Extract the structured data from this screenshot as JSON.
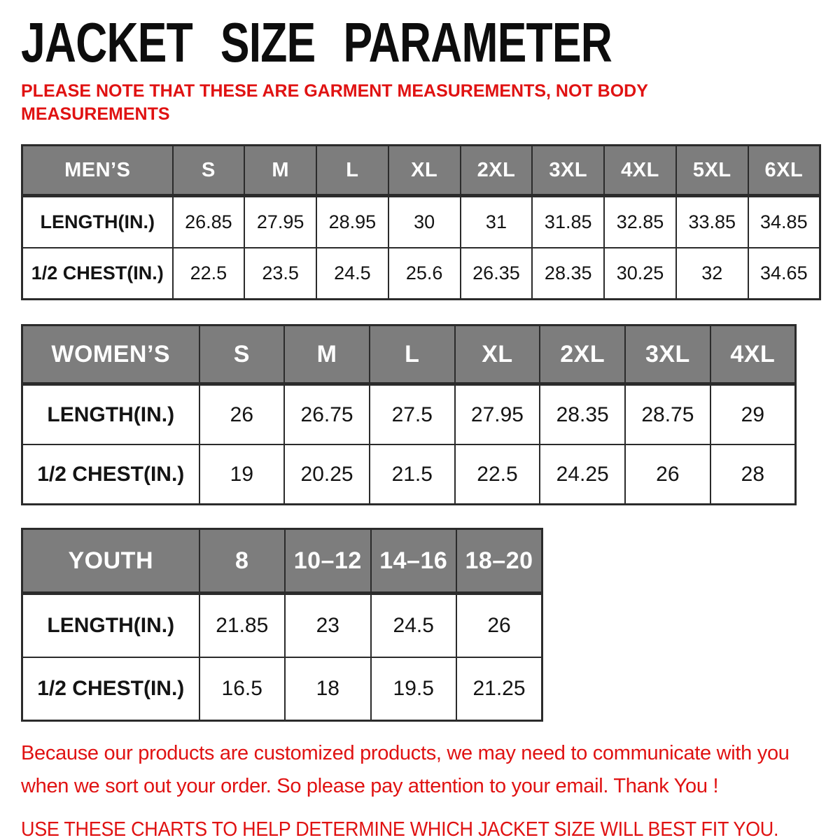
{
  "title": "JACKET SIZE PARAMETER",
  "note": "PLEASE NOTE THAT THESE ARE GARMENT MEASUREMENTS, NOT BODY MEASUREMENTS",
  "colors": {
    "accent_red": "#e01212",
    "table_header_gray": "#7d7d7d",
    "table_border": "#2b2b2b",
    "header_text": "#ffffff",
    "body_text": "#141414"
  },
  "tables": [
    {
      "id": "mens",
      "header": [
        "MEN’S",
        "S",
        "M",
        "L",
        "XL",
        "2XL",
        "3XL",
        "4XL",
        "5XL",
        "6XL"
      ],
      "rows": [
        [
          "LENGTH(IN.)",
          "26.85",
          "27.95",
          "28.95",
          "30",
          "31",
          "31.85",
          "32.85",
          "33.85",
          "34.85"
        ],
        [
          "1/2 CHEST(IN.)",
          "22.5",
          "23.5",
          "24.5",
          "25.6",
          "26.35",
          "28.35",
          "30.25",
          "32",
          "34.65"
        ]
      ]
    },
    {
      "id": "womens",
      "header": [
        "WOMEN’S",
        "S",
        "M",
        "L",
        "XL",
        "2XL",
        "3XL",
        "4XL"
      ],
      "rows": [
        [
          "LENGTH(IN.)",
          "26",
          "26.75",
          "27.5",
          "27.95",
          "28.35",
          "28.75",
          "29"
        ],
        [
          "1/2 CHEST(IN.)",
          "19",
          "20.25",
          "21.5",
          "22.5",
          "24.25",
          "26",
          "28"
        ]
      ]
    },
    {
      "id": "youth",
      "header": [
        "YOUTH",
        "8",
        "10–12",
        "14–16",
        "18–20"
      ],
      "rows": [
        [
          "LENGTH(IN.)",
          "21.85",
          "23",
          "24.5",
          "26"
        ],
        [
          "1/2 CHEST(IN.)",
          "16.5",
          "18",
          "19.5",
          "21.25"
        ]
      ]
    }
  ],
  "footer": {
    "paragraph": "Because our products are customized products, we may need to communicate with you when we sort out your order. So please pay attention to your email. Thank You !",
    "cta": "USE THESE CHARTS TO HELP DETERMINE WHICH JACKET SIZE WILL BEST FIT YOU."
  }
}
